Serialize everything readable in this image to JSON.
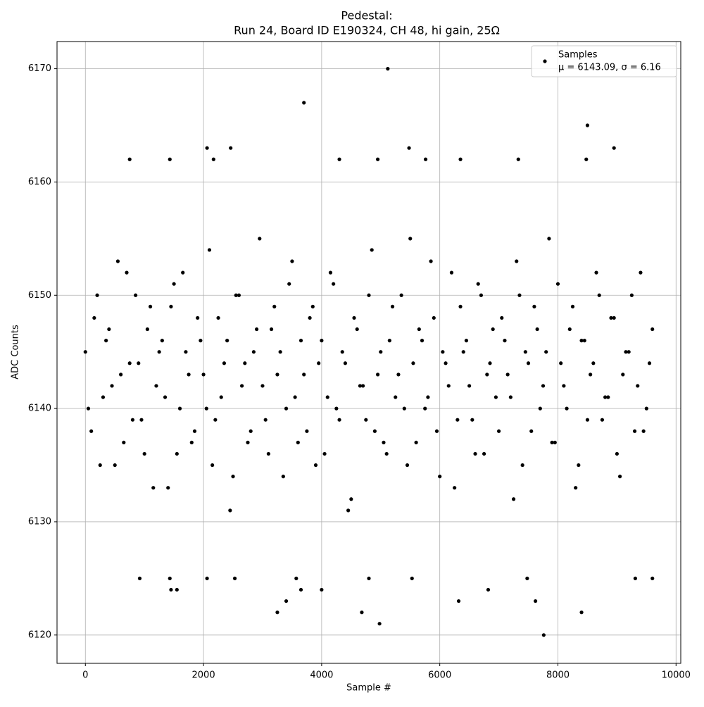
{
  "chart_data": {
    "type": "scatter",
    "title": "Pedestal:",
    "subtitle": "Run 24, Board ID E190324, CH 48, hi gain, 25Ω",
    "x_label": "Sample #",
    "y_label": "ADC Counts",
    "xlim": [
      -480,
      10080
    ],
    "ylim": [
      6117.5,
      6172.4
    ],
    "xticks": [
      0,
      2000,
      4000,
      6000,
      8000,
      10000
    ],
    "yticks": [
      6120,
      6130,
      6140,
      6150,
      6160,
      6170
    ],
    "grid": true,
    "legend": "upper right",
    "legend_text": "μ = 6143.09, σ = 6.16",
    "series": [
      {
        "name": "Samples",
        "color": "#000000",
        "x": [
          5120,
          3700,
          8500,
          2060,
          2460,
          5480,
          8950,
          750,
          1430,
          2170,
          4300,
          4950,
          5760,
          6350,
          7330,
          8480,
          7760,
          4980,
          3250,
          4680,
          8400,
          3400,
          6320,
          7620,
          1450,
          1550,
          3650,
          4000,
          6820,
          920,
          1430,
          2060,
          2530,
          3570,
          4800,
          5530,
          7480,
          9310,
          9600,
          0,
          100,
          200,
          300,
          400,
          500,
          600,
          700,
          800,
          900,
          1000,
          1100,
          1200,
          1300,
          1400,
          1500,
          1600,
          1700,
          1800,
          1900,
          2000,
          2100,
          2200,
          2300,
          2400,
          2500,
          2600,
          2700,
          2800,
          2900,
          3000,
          3100,
          3200,
          3300,
          3400,
          3500,
          3600,
          3700,
          3800,
          3900,
          4000,
          4100,
          4200,
          4300,
          4400,
          4500,
          4600,
          4700,
          4800,
          4900,
          5000,
          5100,
          5200,
          5300,
          5400,
          5500,
          5600,
          5700,
          5800,
          5900,
          6000,
          6100,
          6200,
          6300,
          6400,
          6500,
          6600,
          6700,
          6800,
          6900,
          7000,
          7100,
          7200,
          7300,
          7400,
          7500,
          7600,
          7700,
          7800,
          7900,
          8000,
          8100,
          8200,
          8300,
          8400,
          8500,
          8600,
          8700,
          8800,
          8900,
          9000,
          9100,
          9200,
          9300,
          9400,
          9500,
          9600,
          50,
          150,
          250,
          350,
          450,
          550,
          650,
          750,
          850,
          950,
          1050,
          1150,
          1250,
          1350,
          1450,
          1550,
          1650,
          1750,
          1850,
          1950,
          2050,
          2150,
          2250,
          2350,
          2450,
          2550,
          2650,
          2750,
          2850,
          2950,
          3050,
          3150,
          3250,
          3350,
          3450,
          3550,
          3650,
          3750,
          3850,
          3950,
          4050,
          4150,
          4250,
          4350,
          4450,
          4550,
          4650,
          4750,
          4850,
          4950,
          5050,
          5150,
          5250,
          5350,
          5450,
          5550,
          5650,
          5750,
          5850,
          5950,
          6050,
          6150,
          6250,
          6350,
          6450,
          6550,
          6650,
          6750,
          6850,
          6950,
          7050,
          7150,
          7250,
          7350,
          7450,
          7550,
          7650,
          7750,
          7850,
          7950,
          8050,
          8150,
          8250,
          8350,
          8450,
          8550,
          8650,
          8750,
          8850,
          8950,
          9050,
          9150,
          9250,
          9350,
          9450,
          9550
        ],
        "y": [
          6170,
          6167,
          6165,
          6163,
          6163,
          6163,
          6163,
          6162,
          6162,
          6162,
          6162,
          6162,
          6162,
          6162,
          6162,
          6162,
          6120,
          6121,
          6122,
          6122,
          6122,
          6123,
          6123,
          6123,
          6124,
          6124,
          6124,
          6124,
          6124,
          6125,
          6125,
          6125,
          6125,
          6125,
          6125,
          6125,
          6125,
          6125,
          6125,
          6145,
          6138,
          6150,
          6141,
          6147,
          6135,
          6143,
          6152,
          6139,
          6144,
          6136,
          6149,
          6142,
          6146,
          6133,
          6151,
          6140,
          6145,
          6137,
          6148,
          6143,
          6154,
          6139,
          6141,
          6146,
          6134,
          6150,
          6144,
          6138,
          6147,
          6142,
          6136,
          6149,
          6145,
          6140,
          6153,
          6137,
          6143,
          6148,
          6135,
          6146,
          6141,
          6151,
          6139,
          6144,
          6132,
          6147,
          6142,
          6150,
          6138,
          6145,
          6136,
          6149,
          6143,
          6140,
          6155,
          6137,
          6146,
          6141,
          6148,
          6134,
          6144,
          6152,
          6139,
          6145,
          6142,
          6136,
          6150,
          6143,
          6147,
          6138,
          6146,
          6141,
          6153,
          6135,
          6144,
          6149,
          6140,
          6145,
          6137,
          6151,
          6142,
          6147,
          6133,
          6146,
          6139,
          6144,
          6150,
          6141,
          6148,
          6136,
          6143,
          6145,
          6138,
          6152,
          6140,
          6147,
          6140,
          6148,
          6135,
          6146,
          6142,
          6153,
          6137,
          6144,
          6150,
          6139,
          6147,
          6133,
          6145,
          6141,
          6149,
          6136,
          6152,
          6143,
          6138,
          6146,
          6140,
          6135,
          6148,
          6144,
          6131,
          6150,
          6142,
          6137,
          6145,
          6155,
          6139,
          6147,
          6143,
          6134,
          6151,
          6141,
          6146,
          6138,
          6149,
          6144,
          6136,
          6152,
          6140,
          6145,
          6131,
          6148,
          6142,
          6139,
          6154,
          6143,
          6137,
          6146,
          6141,
          6150,
          6135,
          6144,
          6147,
          6140,
          6153,
          6138,
          6145,
          6142,
          6133,
          6149,
          6146,
          6139,
          6151,
          6136,
          6144,
          6141,
          6148,
          6143,
          6132,
          6150,
          6145,
          6138,
          6147,
          6142,
          6155,
          6137,
          6144,
          6140,
          6149,
          6135,
          6146,
          6143,
          6152,
          6139,
          6141,
          6148,
          6134,
          6145,
          6150,
          6142,
          6138,
          6144
        ]
      }
    ]
  }
}
